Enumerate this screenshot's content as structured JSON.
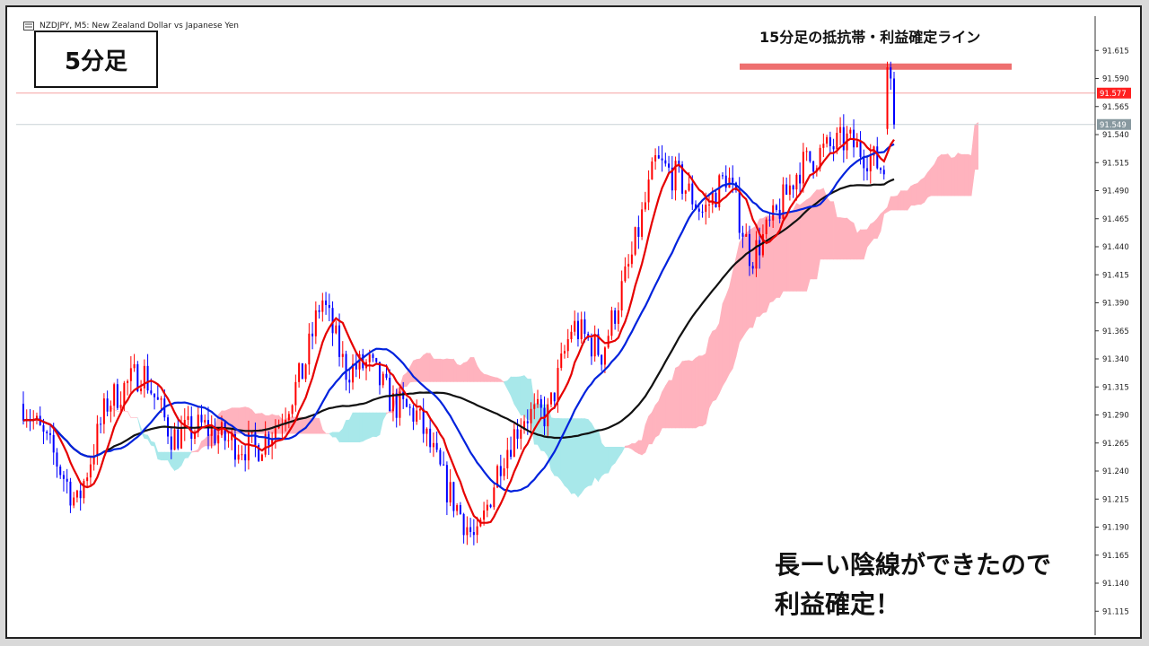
{
  "header": {
    "symbol": "NZDJPY, M5: New Zealand Dollar vs Japanese Yen",
    "timeframe_label": "5分足"
  },
  "annotations": {
    "resistance_label": "15分足の抵抗帯・利益確定ライン",
    "note_line1": "長ーい陰線ができたので",
    "note_line2": "利益確定！"
  },
  "colors": {
    "bull": "#ff0000",
    "bear": "#0000ff",
    "ma_fast": "#e60000",
    "ma_mid": "#0022dd",
    "ma_slow": "#111111",
    "cloud_bull": "#ffb3be",
    "cloud_bear": "#a8e8ea",
    "resistance": "#ee6f6f",
    "price_tag_current": "#ff2020",
    "price_tag_bid": "#8899a0"
  },
  "chart_data": {
    "type": "candlestick",
    "y_axis": {
      "min": 91.1,
      "max": 91.625,
      "ticks": [
        "91.615",
        "91.590",
        "91.565",
        "91.540",
        "91.515",
        "91.490",
        "91.465",
        "91.440",
        "91.415",
        "91.390",
        "91.365",
        "91.340",
        "91.315",
        "91.290",
        "91.265",
        "91.240",
        "91.215",
        "91.190",
        "91.165",
        "91.140",
        "91.115"
      ]
    },
    "price_tags": [
      {
        "value": "91.577"
      },
      {
        "value": "91.549"
      }
    ],
    "resistance_zone": {
      "price": 91.601
    },
    "candles": [],
    "ma_fast": [],
    "ma_mid": [],
    "ma_slow": [],
    "cloud": {
      "span_a": [],
      "span_b": []
    }
  }
}
